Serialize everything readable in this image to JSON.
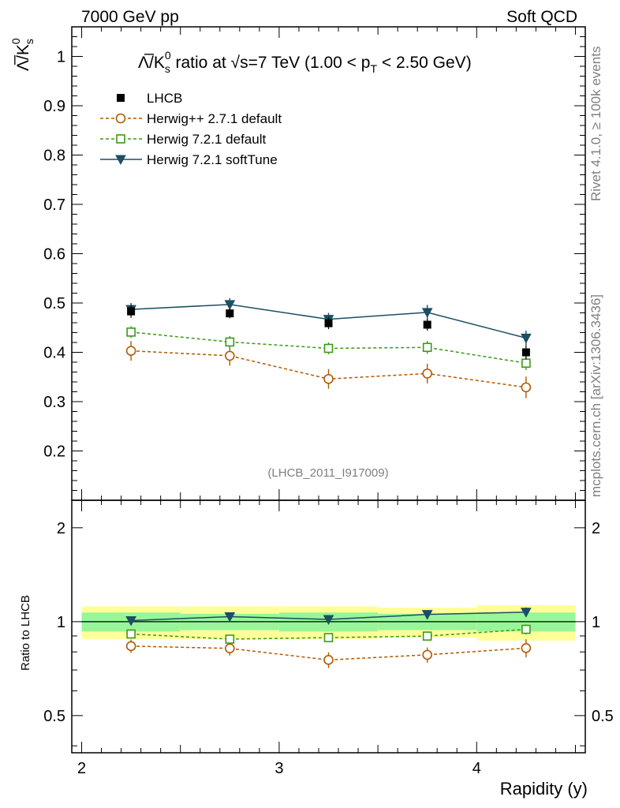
{
  "header": {
    "left": "7000 GeV pp",
    "right": "Soft QCD"
  },
  "side_labels": {
    "rivet": "Rivet 4.1.0, ≥ 100k events",
    "mcplots": "mcplots.cern.ch [arXiv:1306.3436]"
  },
  "analysis_id": "(LHCB_2011_I917009)",
  "chart_data": {
    "type": "line",
    "title": {
      "prefix": "Λ̅/K",
      "sub_s": "s",
      "sup_0": "0",
      "mid": " ratio at √s=7 TeV (1.00 < p",
      "sub_T": "T",
      "suffix": " < 2.50 GeV)"
    },
    "ylabel": {
      "base": "Λ̅/K",
      "sub": "s",
      "sup": "0"
    },
    "ratio_ylabel": "Ratio to LHCB",
    "xlabel": "Rapidity (y)",
    "xlim": [
      1.95,
      4.55
    ],
    "ylim": [
      0.1,
      1.06
    ],
    "ratio_ylim": [
      0.38,
      2.45
    ],
    "x_ticks": [
      2,
      3,
      4
    ],
    "x_tick_labels": [
      "2",
      "3",
      "4"
    ],
    "y_ticks": [
      0.2,
      0.3,
      0.4,
      0.5,
      0.6,
      0.7,
      0.8,
      0.9,
      1
    ],
    "y_tick_labels": [
      "0.2",
      "0.3",
      "0.4",
      "0.5",
      "0.6",
      "0.7",
      "0.8",
      "0.9",
      "1"
    ],
    "ratio_ticks": [
      0.5,
      1,
      2
    ],
    "ratio_tick_labels": [
      "0.5",
      "1",
      "2"
    ],
    "x": [
      2.25,
      2.75,
      3.25,
      3.75,
      4.25
    ],
    "bin_edges": [
      2.0,
      2.5,
      3.0,
      3.5,
      4.0,
      4.5
    ],
    "data": {
      "name": "LHCB",
      "values": [
        0.483,
        0.479,
        0.459,
        0.456,
        0.4
      ],
      "errors": [
        0.013,
        0.01,
        0.012,
        0.012,
        0.014
      ],
      "band_yellow": [
        0.12,
        0.12,
        0.12,
        0.11,
        0.13
      ],
      "band_green": [
        0.07,
        0.06,
        0.07,
        0.06,
        0.07
      ]
    },
    "series": [
      {
        "name": "Herwig++ 2.7.1 default",
        "color": "#b35900",
        "marker": "circle",
        "dashed": true,
        "values": [
          0.403,
          0.393,
          0.346,
          0.357,
          0.329
        ],
        "errors": [
          0.02,
          0.02,
          0.02,
          0.02,
          0.022
        ],
        "ratio": [
          0.835,
          0.821,
          0.754,
          0.783,
          0.823
        ]
      },
      {
        "name": "Herwig 7.2.1 default",
        "color": "#3a9a16",
        "marker": "square",
        "dashed": true,
        "values": [
          0.441,
          0.421,
          0.408,
          0.41,
          0.378
        ],
        "errors": [
          0.012,
          0.012,
          0.012,
          0.013,
          0.014
        ],
        "ratio": [
          0.913,
          0.879,
          0.889,
          0.899,
          0.945
        ]
      },
      {
        "name": "Herwig 7.2.1 softTune",
        "color": "#1b4f63",
        "marker": "triangle-down",
        "dashed": false,
        "values": [
          0.487,
          0.497,
          0.467,
          0.481,
          0.429
        ],
        "errors": [
          0.013,
          0.013,
          0.013,
          0.015,
          0.015
        ],
        "ratio": [
          1.008,
          1.038,
          1.017,
          1.055,
          1.073
        ]
      }
    ]
  }
}
